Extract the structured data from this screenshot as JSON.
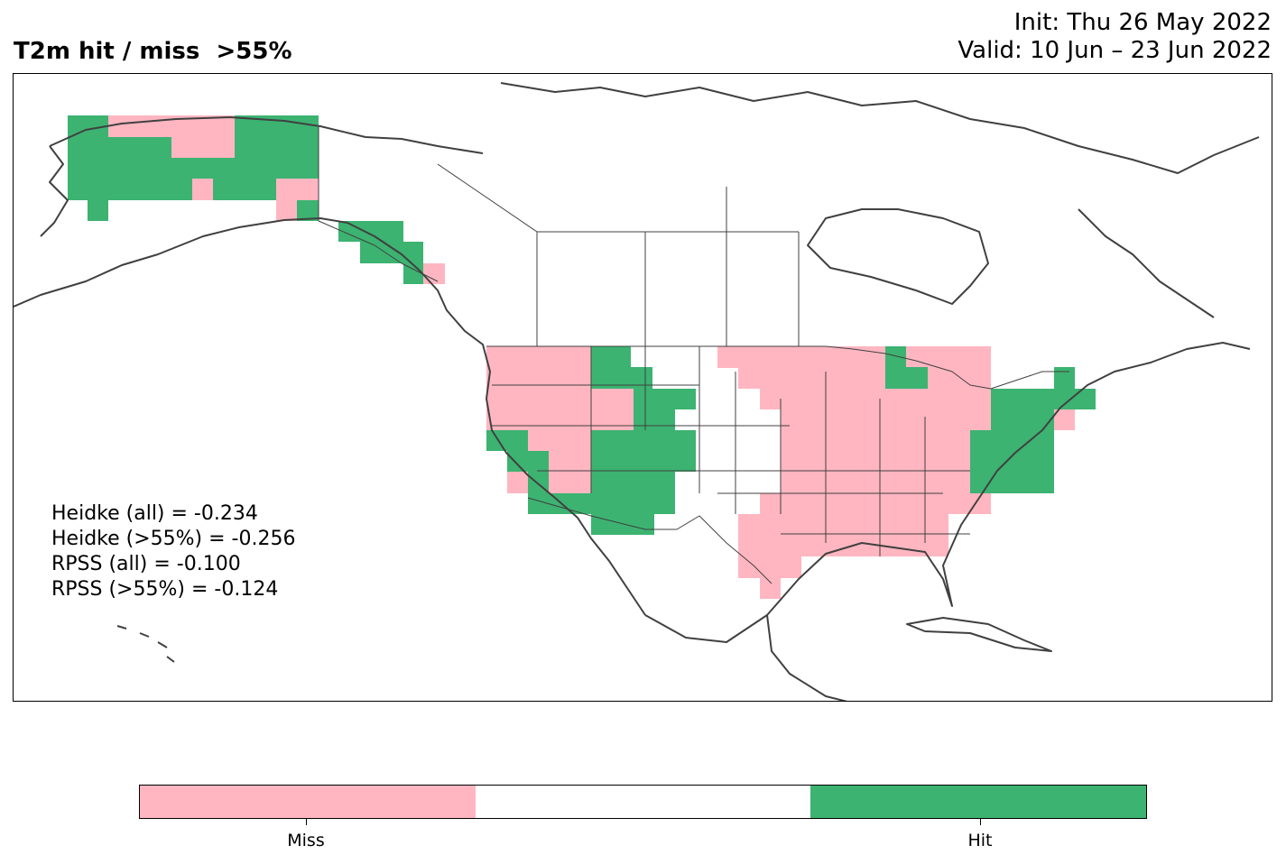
{
  "title": {
    "left": "T2m hit / miss  >55%",
    "init": "Init: Thu 26 May 2022",
    "valid": "Valid: 10 Jun – 23 Jun 2022"
  },
  "stats": [
    "Heidke (all) = -0.234",
    "Heidke (>55%) = -0.256",
    "RPSS (all) = -0.100",
    "RPSS (>55%) = -0.124"
  ],
  "colors": {
    "miss": "#ffb6c1",
    "neutral": "#ffffff",
    "hit": "#3cb371",
    "coast": "#404040"
  },
  "legend": {
    "categories": [
      "Miss",
      "",
      "Hit"
    ],
    "labels": [
      "Miss",
      "Hit"
    ]
  }
}
